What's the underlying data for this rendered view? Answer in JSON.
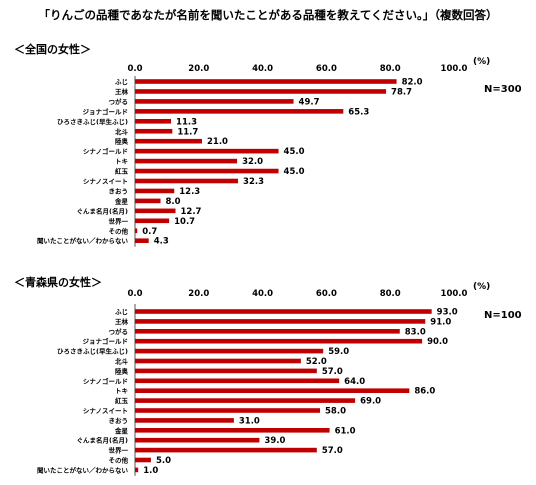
{
  "title": "「りんごの品種であなたが名前を聞いたことがある品種を教えてください。」（複数回答）",
  "chart_data": [
    {
      "type": "bar",
      "orientation": "horizontal",
      "subtitle": "＜全国の女性＞",
      "n_label": "N=300",
      "unit_label": "(%)",
      "xlim": [
        0,
        100
      ],
      "ticks": [
        "0.0",
        "20.0",
        "40.0",
        "60.0",
        "80.0",
        "100.0"
      ],
      "bar_color": "#c00000",
      "categories": [
        "ふじ",
        "王林",
        "つがる",
        "ジョナゴールド",
        "ひろさきふじ(早生ふじ)",
        "北斗",
        "陸奥",
        "シナノゴールド",
        "トキ",
        "紅玉",
        "シナノスイート",
        "きおう",
        "金星",
        "ぐんま名月(名月)",
        "世界一",
        "その他",
        "聞いたことがない／わからない"
      ],
      "values": [
        82.0,
        78.7,
        49.7,
        65.3,
        11.3,
        11.7,
        21.0,
        45.0,
        32.0,
        45.0,
        32.3,
        12.3,
        8.0,
        12.7,
        10.7,
        0.7,
        4.3
      ],
      "value_labels": [
        "82.0",
        "78.7",
        "49.7",
        "65.3",
        "11.3",
        "11.7",
        "21.0",
        "45.0",
        "32.0",
        "45.0",
        "32.3",
        "12.3",
        "8.0",
        "12.7",
        "10.7",
        "0.7",
        "4.3"
      ]
    },
    {
      "type": "bar",
      "orientation": "horizontal",
      "subtitle": "＜青森県の女性＞",
      "n_label": "N=100",
      "unit_label": "(%)",
      "xlim": [
        0,
        100
      ],
      "ticks": [
        "0.0",
        "20.0",
        "40.0",
        "60.0",
        "80.0",
        "100.0"
      ],
      "bar_color": "#c00000",
      "categories": [
        "ふじ",
        "王林",
        "つがる",
        "ジョナゴールド",
        "ひろさきふじ(早生ふじ)",
        "北斗",
        "陸奥",
        "シナノゴールド",
        "トキ",
        "紅玉",
        "シナノスイート",
        "きおう",
        "金星",
        "ぐんま名月(名月)",
        "世界一",
        "その他",
        "聞いたことがない／わからない"
      ],
      "values": [
        93.0,
        91.0,
        83.0,
        90.0,
        59.0,
        52.0,
        57.0,
        64.0,
        86.0,
        69.0,
        58.0,
        31.0,
        61.0,
        39.0,
        57.0,
        5.0,
        1.0
      ],
      "value_labels": [
        "93.0",
        "91.0",
        "83.0",
        "90.0",
        "59.0",
        "52.0",
        "57.0",
        "64.0",
        "86.0",
        "69.0",
        "58.0",
        "31.0",
        "61.0",
        "39.0",
        "57.0",
        "5.0",
        "1.0"
      ]
    }
  ]
}
